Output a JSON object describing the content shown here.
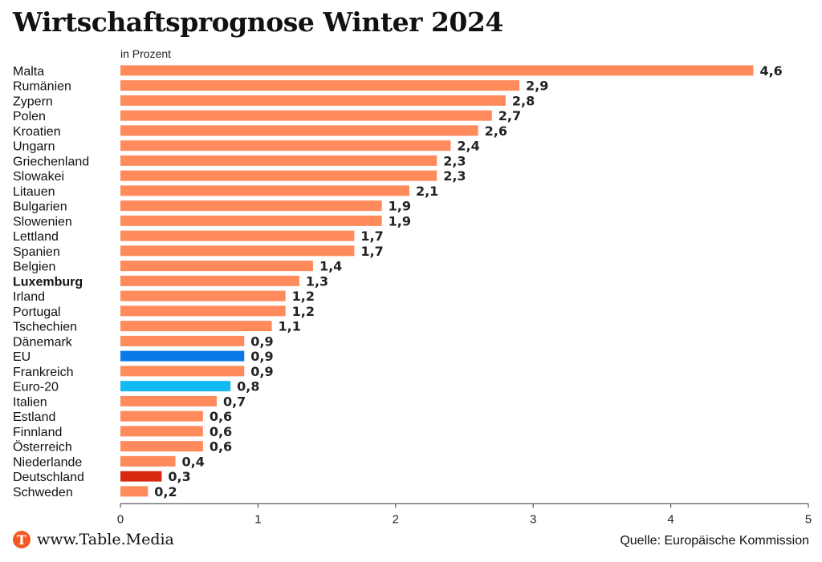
{
  "header": {
    "title": "Wirtschaftsprognose Winter 2024",
    "subtitle": "in Prozent"
  },
  "footer": {
    "logo_text": "www.Table.Media",
    "logo_letter": "T",
    "source": "Quelle: Europäische Kommission"
  },
  "colors": {
    "default": "#ff8a5c",
    "eu": "#0a7be6",
    "euro20": "#13b9f2",
    "germany": "#d7290f"
  },
  "chart_data": {
    "type": "bar",
    "orientation": "horizontal",
    "xlim": [
      0,
      5
    ],
    "xticks": [
      0,
      1,
      2,
      3,
      4,
      5
    ],
    "grid": false,
    "categories": [
      "Malta",
      "Rumänien",
      "Zypern",
      "Polen",
      "Kroatien",
      "Ungarn",
      "Griechenland",
      "Slowakei",
      "Litauen",
      "Bulgarien",
      "Slowenien",
      "Lettland",
      "Spanien",
      "Belgien",
      "Luxemburg",
      "Irland",
      "Portugal",
      "Tschechien",
      "Dänemark",
      "EU",
      "Frankreich",
      "Euro-20",
      "Italien",
      "Estland",
      "Finnland",
      "Österreich",
      "Niederlande",
      "Deutschland",
      "Schweden"
    ],
    "values": [
      4.6,
      2.9,
      2.8,
      2.7,
      2.6,
      2.4,
      2.3,
      2.3,
      2.1,
      1.9,
      1.9,
      1.7,
      1.7,
      1.4,
      1.3,
      1.2,
      1.2,
      1.1,
      0.9,
      0.9,
      0.9,
      0.8,
      0.7,
      0.6,
      0.6,
      0.6,
      0.4,
      0.3,
      0.2
    ],
    "value_labels": [
      "4,6",
      "2,9",
      "2,8",
      "2,7",
      "2,6",
      "2,4",
      "2,3",
      "2,3",
      "2,1",
      "1,9",
      "1,9",
      "1,7",
      "1,7",
      "1,4",
      "1,3",
      "1,2",
      "1,2",
      "1,1",
      "0,9",
      "0,9",
      "0,9",
      "0,8",
      "0,7",
      "0,6",
      "0,6",
      "0,6",
      "0,4",
      "0,3",
      "0,2"
    ],
    "bold_categories": [
      "Luxemburg"
    ],
    "highlight": {
      "EU": "eu",
      "Euro-20": "euro20",
      "Deutschland": "germany"
    }
  }
}
